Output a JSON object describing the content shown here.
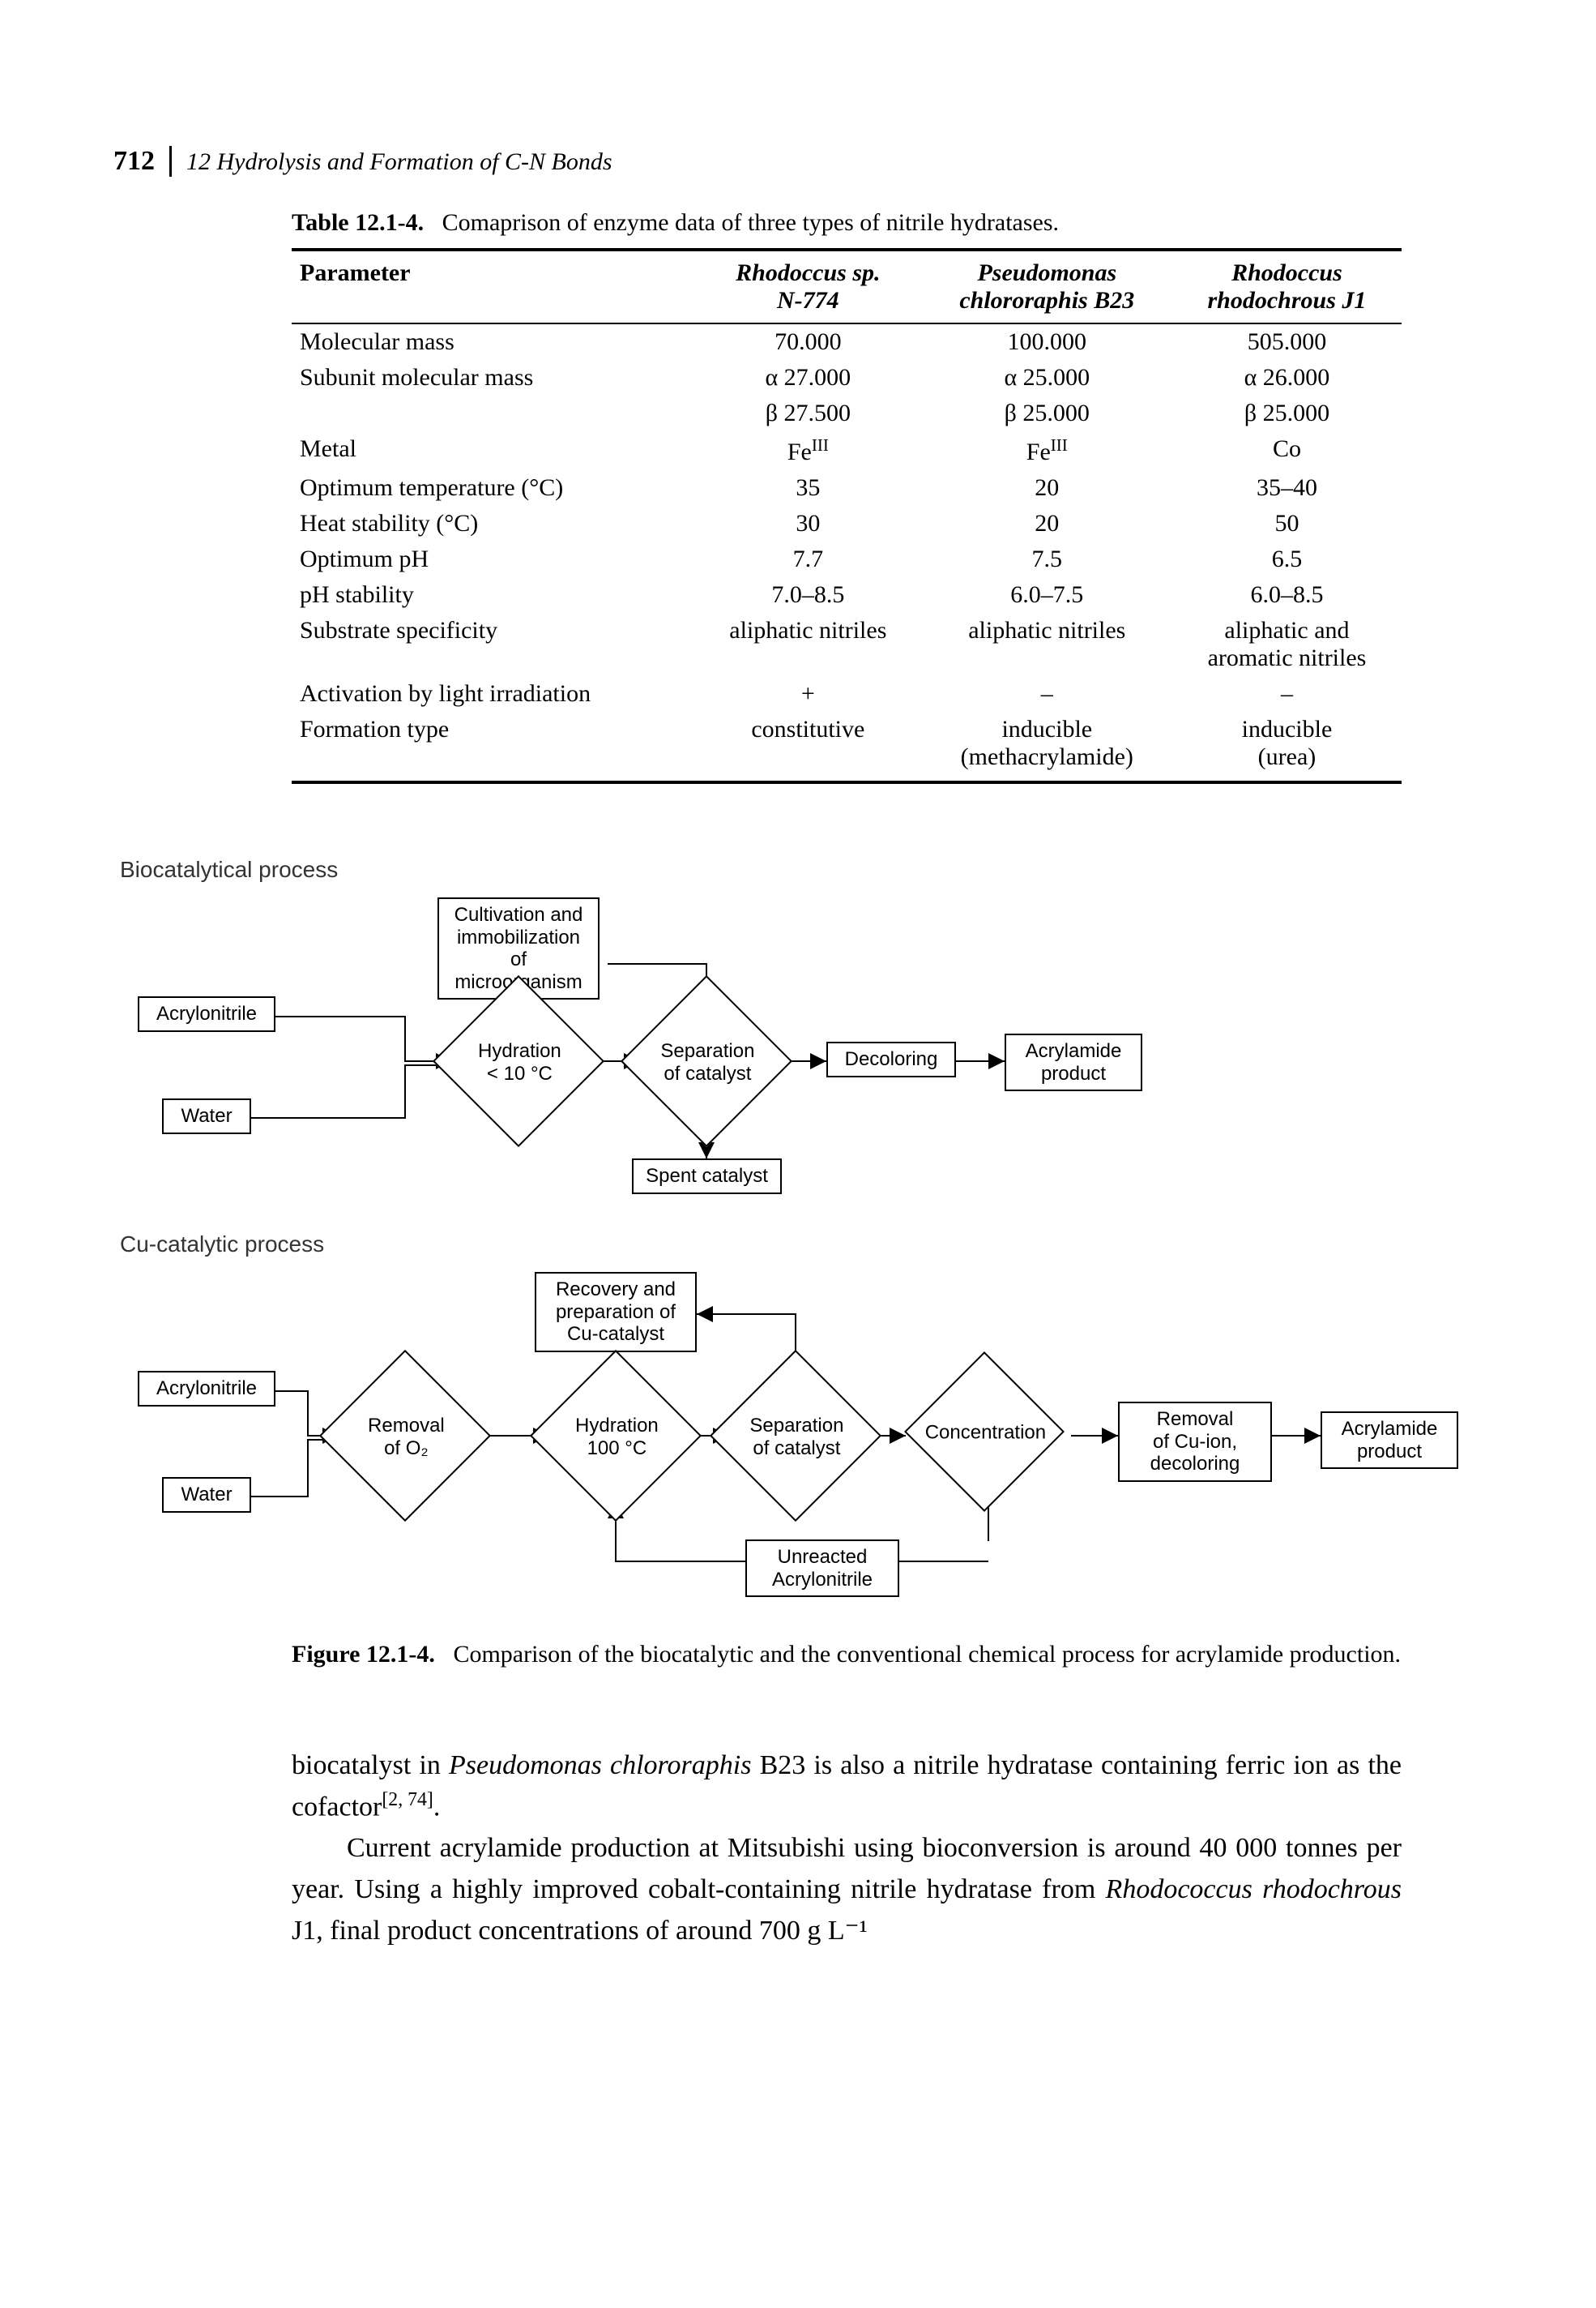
{
  "page_number": "712",
  "chapter_title": "12 Hydrolysis and Formation of C-N Bonds",
  "table": {
    "caption_label": "Table 12.1-4.",
    "caption_text": "Comaprison of enzyme data of three types of nitrile hydratases.",
    "columns": [
      "Parameter",
      "Rhodoccus sp.\nN-774",
      "Pseudomonas\nchlororaphis B23",
      "Rhodoccus\nrhodochrous J1"
    ],
    "rows": [
      [
        "Molecular mass",
        "70.000",
        "100.000",
        "505.000"
      ],
      [
        "Subunit molecular mass",
        "α 27.000",
        "α 25.000",
        "α 26.000"
      ],
      [
        "",
        "β 27.500",
        "β 25.000",
        "β 25.000"
      ],
      [
        "Metal",
        "FeIII",
        "FeIII",
        "Co"
      ],
      [
        "Optimum temperature (°C)",
        "35",
        "20",
        "35–40"
      ],
      [
        "Heat stability (°C)",
        "30",
        "20",
        "50"
      ],
      [
        "Optimum pH",
        "7.7",
        "7.5",
        "6.5"
      ],
      [
        "pH stability",
        "7.0–8.5",
        "6.0–7.5",
        "6.0–8.5"
      ],
      [
        "Substrate specificity",
        "aliphatic nitriles",
        "aliphatic nitriles",
        "aliphatic and\naromatic nitriles"
      ],
      [
        "Activation by light irradiation",
        "+",
        "–",
        "–"
      ],
      [
        "Formation type",
        "constitutive",
        "inducible\n(methacrylamide)",
        "inducible\n(urea)"
      ]
    ]
  },
  "flow1": {
    "section_label": "Biocatalytical process",
    "boxes": {
      "cultivation": "Cultivation and\nimmobilization\nof microorganism",
      "acrylonitrile": "Acrylonitrile",
      "water": "Water",
      "hydration": "Hydration\n< 10 °C",
      "separation": "Separation\nof catalyst",
      "decoloring": "Decoloring",
      "product": "Acrylamide\nproduct",
      "spent": "Spent catalyst"
    }
  },
  "flow2": {
    "section_label": "Cu-catalytic process",
    "boxes": {
      "recovery": "Recovery and\npreparation of\nCu-catalyst",
      "acrylonitrile": "Acrylonitrile",
      "water": "Water",
      "removal_o2": "Removal\nof O₂",
      "hydration": "Hydration\n100 °C",
      "separation": "Separation\nof catalyst",
      "concentration": "Concentration",
      "removal_cu": "Removal\nof Cu-ion,\ndecoloring",
      "product": "Acrylamide\nproduct",
      "unreacted": "Unreacted\nAcrylonitrile"
    }
  },
  "figure": {
    "caption_label": "Figure 12.1-4.",
    "caption_text": "Comparison of the biocatalytic and the conventional chemical process for acrylamide production."
  },
  "paragraphs": {
    "p1_a": "biocatalyst in ",
    "p1_b": "Pseudomonas chlororaphis",
    "p1_c": " B23 is also a nitrile hydratase containing ferric ion as the cofactor",
    "p1_ref": "[2, 74]",
    "p1_d": ".",
    "p2_a": "Current acrylamide production at Mitsubishi using bioconversion is around 40 000 tonnes per year. Using a highly improved cobalt-containing nitrile hydratase from ",
    "p2_b": "Rhodococcus rhodochrous",
    "p2_c": " J1, final product concentrations of around 700 g L⁻¹"
  },
  "colors": {
    "text": "#000000",
    "bg": "#ffffff",
    "line": "#000000"
  }
}
